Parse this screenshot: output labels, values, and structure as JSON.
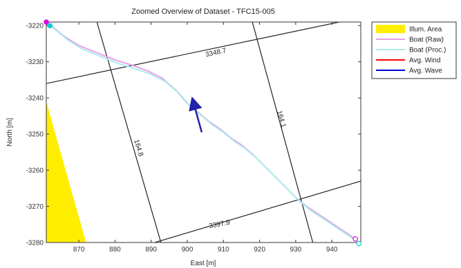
{
  "chart_data": {
    "type": "line",
    "title": "Zoomed Overview of Dataset - TFC15-005",
    "xlabel": "East [m]",
    "ylabel": "North [m]",
    "xlim": [
      861,
      948
    ],
    "ylim": [
      -3280,
      -3219
    ],
    "xticks": [
      870,
      880,
      890,
      900,
      910,
      920,
      930,
      940
    ],
    "yticks": [
      -3220,
      -3230,
      -3240,
      -3250,
      -3260,
      -3270,
      -3280
    ],
    "grid": false,
    "legend_position": "outside-right",
    "legend": [
      {
        "label": "Illum. Area",
        "kind": "patch",
        "color": "#ffee00"
      },
      {
        "label": "Boat (Raw)",
        "kind": "line",
        "color": "#e8a0e8"
      },
      {
        "label": "Boat (Proc.)",
        "kind": "line",
        "color": "#a8ecec"
      },
      {
        "label": "Avg. Wind",
        "kind": "line",
        "color": "#ff0000"
      },
      {
        "label": "Avg. Wave",
        "kind": "line",
        "color": "#0000cc"
      }
    ],
    "illuminated_area": {
      "color": "#ffee00",
      "polygon": [
        [
          861,
          -3241
        ],
        [
          861,
          -3280
        ],
        [
          872,
          -3280
        ]
      ]
    },
    "series": [
      {
        "name": "Boat (Raw)",
        "color": "#e8a0e8",
        "x": [
          861,
          863,
          866,
          870,
          875,
          880,
          885,
          889,
          893,
          897,
          900,
          903,
          906,
          909,
          912,
          915,
          918,
          921,
          924,
          927,
          930,
          933,
          936,
          939,
          942,
          945,
          947
        ],
        "y": [
          -3219.5,
          -3220.5,
          -3223,
          -3225.5,
          -3227.5,
          -3229.5,
          -3231,
          -3232.5,
          -3234.5,
          -3238,
          -3241.5,
          -3244,
          -3246.5,
          -3248.5,
          -3251,
          -3253,
          -3255.5,
          -3258.5,
          -3261.5,
          -3264.5,
          -3267.5,
          -3270,
          -3272,
          -3274,
          -3276,
          -3278,
          -3279.5
        ]
      },
      {
        "name": "Boat (Proc.)",
        "color": "#a8ecec",
        "x": [
          862,
          864,
          867,
          871,
          876,
          881,
          886,
          890,
          894,
          898,
          901,
          904,
          907,
          910,
          913,
          916,
          919,
          922,
          925,
          928,
          931,
          934,
          937,
          940,
          943,
          946,
          948
        ],
        "y": [
          -3220,
          -3221.5,
          -3224,
          -3226.5,
          -3228.5,
          -3230.5,
          -3232,
          -3233.5,
          -3235.5,
          -3239,
          -3242.5,
          -3245,
          -3247.5,
          -3249.5,
          -3252,
          -3254,
          -3256.5,
          -3259.5,
          -3262.5,
          -3265.5,
          -3268.5,
          -3271,
          -3273,
          -3275,
          -3277,
          -3279,
          -3280.3
        ]
      }
    ],
    "markers": [
      {
        "name": "raw-start",
        "x": 861,
        "y": -3219,
        "color": "#e000e0",
        "filled": true
      },
      {
        "name": "proc-start",
        "x": 862,
        "y": -3220,
        "color": "#00d0d0",
        "filled": true
      },
      {
        "name": "raw-end",
        "x": 946.5,
        "y": -3279,
        "color": "#e000e0",
        "filled": false
      },
      {
        "name": "proc-end",
        "x": 947.5,
        "y": -3280.3,
        "color": "#00d0d0",
        "filled": false
      }
    ],
    "wave_arrow": {
      "color": "#2222aa",
      "from": [
        904,
        -3249.5
      ],
      "to": [
        901.5,
        -3240.5
      ]
    },
    "grid_lines": [
      {
        "label": "3348.7",
        "from": [
          861,
          -3236
        ],
        "to": [
          942,
          -3219
        ],
        "label_at": [
          908,
          -3228
        ],
        "angle": -12
      },
      {
        "label": "3397.9",
        "from": [
          891,
          -3280
        ],
        "to": [
          948,
          -3263
        ],
        "label_at": [
          909,
          -3275.5
        ],
        "angle": -11
      },
      {
        "label": "164.8",
        "from": [
          875,
          -3219
        ],
        "to": [
          893,
          -3281
        ],
        "label_at": [
          886,
          -3254
        ],
        "angle": 73
      },
      {
        "label": "164.1",
        "from": [
          918,
          -3219
        ],
        "to": [
          935,
          -3281
        ],
        "label_at": [
          925.5,
          -3246
        ],
        "angle": 74
      }
    ]
  }
}
